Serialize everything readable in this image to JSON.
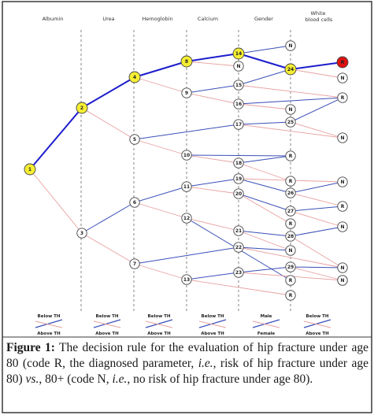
{
  "columns": [
    "Albumin",
    "Urea",
    "Hemoglobin",
    "Calcium",
    "Gender",
    "White blood cells"
  ],
  "nodes": [
    {
      "id": "1",
      "label": "1",
      "color": "#f5ee33"
    },
    {
      "id": "2",
      "label": "2",
      "color": "#f5ee33"
    },
    {
      "id": "3",
      "label": "3",
      "color": "#ffffff"
    },
    {
      "id": "4",
      "label": "4",
      "color": "#f5ee33"
    },
    {
      "id": "5",
      "label": "5",
      "color": "#ffffff"
    },
    {
      "id": "6",
      "label": "6",
      "color": "#ffffff"
    },
    {
      "id": "7",
      "label": "7",
      "color": "#ffffff"
    },
    {
      "id": "8",
      "label": "8",
      "color": "#f5ee33"
    },
    {
      "id": "9",
      "label": "9",
      "color": "#ffffff"
    },
    {
      "id": "10",
      "label": "10",
      "color": "#ffffff"
    },
    {
      "id": "11",
      "label": "11",
      "color": "#ffffff"
    },
    {
      "id": "12",
      "label": "12",
      "color": "#ffffff"
    },
    {
      "id": "13",
      "label": "13",
      "color": "#ffffff"
    },
    {
      "id": "14",
      "label": "14",
      "color": "#f5ee33"
    },
    {
      "id": "N_a",
      "label": "N",
      "color": "#ffffff"
    },
    {
      "id": "15",
      "label": "15",
      "color": "#ffffff"
    },
    {
      "id": "16",
      "label": "16",
      "color": "#ffffff"
    },
    {
      "id": "17",
      "label": "17",
      "color": "#ffffff"
    },
    {
      "id": "18",
      "label": "18",
      "color": "#ffffff"
    },
    {
      "id": "19",
      "label": "19",
      "color": "#ffffff"
    },
    {
      "id": "20",
      "label": "20",
      "color": "#ffffff"
    },
    {
      "id": "21",
      "label": "21",
      "color": "#ffffff"
    },
    {
      "id": "22",
      "label": "22",
      "color": "#ffffff"
    },
    {
      "id": "23",
      "label": "23",
      "color": "#ffffff"
    },
    {
      "id": "N_top",
      "label": "N",
      "color": "#ffffff"
    },
    {
      "id": "24",
      "label": "24",
      "color": "#f5ee33"
    },
    {
      "id": "N_b",
      "label": "N",
      "color": "#ffffff"
    },
    {
      "id": "25",
      "label": "25",
      "color": "#ffffff"
    },
    {
      "id": "R_a",
      "label": "R",
      "color": "#ffffff"
    },
    {
      "id": "R_b",
      "label": "R",
      "color": "#ffffff"
    },
    {
      "id": "R_c",
      "label": "R",
      "color": "#ffffff"
    },
    {
      "id": "26",
      "label": "26",
      "color": "#ffffff"
    },
    {
      "id": "27",
      "label": "27",
      "color": "#ffffff"
    },
    {
      "id": "R_d",
      "label": "R",
      "color": "#ffffff"
    },
    {
      "id": "28",
      "label": "28",
      "color": "#ffffff"
    },
    {
      "id": "N_c",
      "label": "N",
      "color": "#ffffff"
    },
    {
      "id": "29",
      "label": "29",
      "color": "#ffffff"
    },
    {
      "id": "N_d",
      "label": "N",
      "color": "#ffffff"
    },
    {
      "id": "R_e",
      "label": "R",
      "color": "#ffffff"
    },
    {
      "id": "R_red",
      "label": "R",
      "color": "#e01010"
    },
    {
      "id": "N_e",
      "label": "N",
      "color": "#ffffff"
    },
    {
      "id": "R_f",
      "label": "R",
      "color": "#ffffff"
    },
    {
      "id": "N_f",
      "label": "N",
      "color": "#ffffff"
    },
    {
      "id": "N_g",
      "label": "N",
      "color": "#ffffff"
    },
    {
      "id": "R_g",
      "label": "R",
      "color": "#ffffff"
    },
    {
      "id": "N_h",
      "label": "N",
      "color": "#ffffff"
    },
    {
      "id": "N_i",
      "label": "N",
      "color": "#ffffff"
    },
    {
      "id": "N_j",
      "label": "N",
      "color": "#ffffff"
    }
  ],
  "edges": [
    {
      "from": "1",
      "to": "2",
      "kind": "highlight"
    },
    {
      "from": "1",
      "to": "3",
      "kind": "above"
    },
    {
      "from": "2",
      "to": "4",
      "kind": "highlight"
    },
    {
      "from": "2",
      "to": "5",
      "kind": "above"
    },
    {
      "from": "4",
      "to": "8",
      "kind": "highlight"
    },
    {
      "from": "4",
      "to": "9",
      "kind": "above"
    },
    {
      "from": "8",
      "to": "14",
      "kind": "highlight"
    },
    {
      "from": "8",
      "to": "N_a",
      "kind": "above"
    },
    {
      "from": "14",
      "to": "24",
      "kind": "highlight"
    },
    {
      "from": "14",
      "to": "N_top",
      "kind": "below"
    },
    {
      "from": "24",
      "to": "R_red",
      "kind": "highlight"
    },
    {
      "from": "24",
      "to": "N_e",
      "kind": "above"
    },
    {
      "from": "9",
      "to": "15",
      "kind": "below"
    },
    {
      "from": "9",
      "to": "16",
      "kind": "above"
    },
    {
      "from": "15",
      "to": "24",
      "kind": "below"
    },
    {
      "from": "15",
      "to": "R_f",
      "kind": "above"
    },
    {
      "from": "16",
      "to": "N_b",
      "kind": "above"
    },
    {
      "from": "16",
      "to": "R_f",
      "kind": "below"
    },
    {
      "from": "3",
      "to": "6",
      "kind": "below"
    },
    {
      "from": "3",
      "to": "7",
      "kind": "above"
    },
    {
      "from": "5",
      "to": "17",
      "kind": "below"
    },
    {
      "from": "5",
      "to": "10",
      "kind": "above"
    },
    {
      "from": "17",
      "to": "25",
      "kind": "below"
    },
    {
      "from": "17",
      "to": "N_f",
      "kind": "above"
    },
    {
      "from": "25",
      "to": "R_f",
      "kind": "below"
    },
    {
      "from": "25",
      "to": "N_f",
      "kind": "above"
    },
    {
      "from": "10",
      "to": "R_a",
      "kind": "below"
    },
    {
      "from": "10",
      "to": "18",
      "kind": "above"
    },
    {
      "from": "18",
      "to": "R_a",
      "kind": "below"
    },
    {
      "from": "18",
      "to": "R_b",
      "kind": "above"
    },
    {
      "from": "6",
      "to": "11",
      "kind": "below"
    },
    {
      "from": "6",
      "to": "12",
      "kind": "above"
    },
    {
      "from": "11",
      "to": "19",
      "kind": "below"
    },
    {
      "from": "11",
      "to": "20",
      "kind": "above"
    },
    {
      "from": "19",
      "to": "26",
      "kind": "below"
    },
    {
      "from": "19",
      "to": "N_g",
      "kind": "above"
    },
    {
      "from": "26",
      "to": "N_g",
      "kind": "below"
    },
    {
      "from": "26",
      "to": "R_g",
      "kind": "above"
    },
    {
      "from": "20",
      "to": "27",
      "kind": "below"
    },
    {
      "from": "20",
      "to": "R_c",
      "kind": "above"
    },
    {
      "from": "27",
      "to": "R_g",
      "kind": "below"
    },
    {
      "from": "27",
      "to": "N_h",
      "kind": "above"
    },
    {
      "from": "12",
      "to": "R_d",
      "kind": "below"
    },
    {
      "from": "12",
      "to": "21",
      "kind": "above"
    },
    {
      "from": "21",
      "to": "28",
      "kind": "below"
    },
    {
      "from": "21",
      "to": "N_c",
      "kind": "above"
    },
    {
      "from": "28",
      "to": "N_h",
      "kind": "below"
    },
    {
      "from": "28",
      "to": "N_i",
      "kind": "above"
    },
    {
      "from": "7",
      "to": "22",
      "kind": "below"
    },
    {
      "from": "7",
      "to": "13",
      "kind": "above"
    },
    {
      "from": "22",
      "to": "N_c",
      "kind": "below"
    },
    {
      "from": "22",
      "to": "N_i",
      "kind": "above"
    },
    {
      "from": "13",
      "to": "23",
      "kind": "below"
    },
    {
      "from": "13",
      "to": "R_e",
      "kind": "above"
    },
    {
      "from": "23",
      "to": "29",
      "kind": "below"
    },
    {
      "from": "23",
      "to": "N_d",
      "kind": "above"
    },
    {
      "from": "29",
      "to": "N_i",
      "kind": "below"
    },
    {
      "from": "29",
      "to": "N_j",
      "kind": "above"
    }
  ],
  "legend": [
    {
      "top": "Below TH",
      "bottom": "Above TH"
    },
    {
      "top": "Below TH",
      "bottom": "Above TH"
    },
    {
      "top": "Below TH",
      "bottom": "Above TH"
    },
    {
      "top": "Below TH",
      "bottom": "Above TH"
    },
    {
      "top": "Male",
      "bottom": "Female"
    },
    {
      "top": "Below TH",
      "bottom": "Above TH"
    }
  ],
  "colors": {
    "highlight": "#1c1ccc",
    "below": "#3a4fb8",
    "above": "#e8a0a0",
    "yellow_node": "#f5ee33",
    "red_node": "#e01010",
    "frame": "#3a3a3a"
  },
  "caption": {
    "label": "Figure 1:",
    "part1": " The decision rule for the evaluation of hip fracture under age 80 (code R, the diagnosed parameter, ",
    "ie1": "i.e.",
    "part2": ", risk of hip fracture under age 80) ",
    "vs": "vs.",
    "part3": ", 80+ (code N, ",
    "ie2": "i.e.",
    "part4": ", no risk of hip fracture under age 80)."
  }
}
